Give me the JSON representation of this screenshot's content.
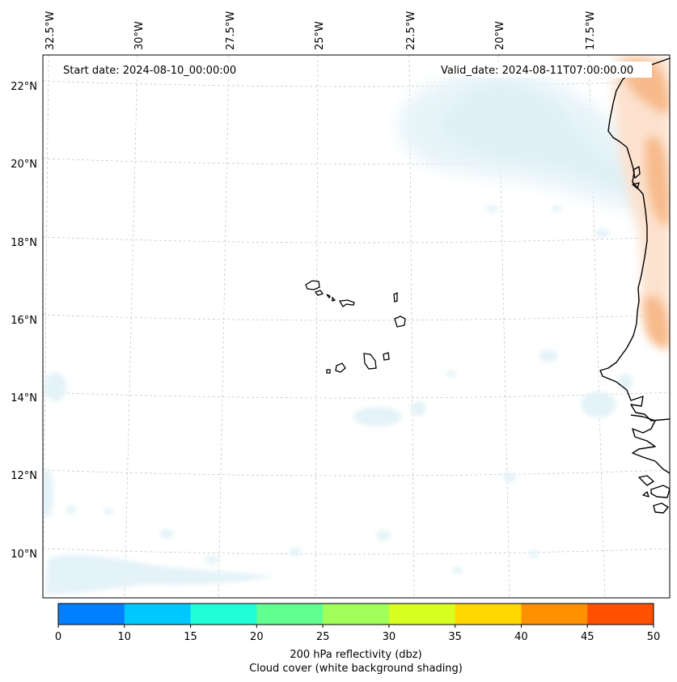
{
  "map": {
    "start_label": "Start date: 2024-08-10_00:00:00",
    "valid_label": "Valid_date: 2024-08-11T07:00:00.00",
    "lon_labels": [
      "32.5°W",
      "30°W",
      "27.5°W",
      "25°W",
      "22.5°W",
      "20°W",
      "17.5°W"
    ],
    "lat_labels": [
      "22°N",
      "20°N",
      "18°N",
      "16°N",
      "14°N",
      "12°N",
      "10°N"
    ]
  },
  "colorbar": {
    "ticks": [
      "0",
      "10",
      "15",
      "20",
      "25",
      "30",
      "35",
      "40",
      "45",
      "50"
    ],
    "colors": [
      "#0080ff",
      "#00c8ff",
      "#20ffd8",
      "#60ff90",
      "#a0ff58",
      "#d8ff20",
      "#ffd800",
      "#ff9000",
      "#ff5000"
    ],
    "label_line1": "200 hPa reflectivity (dbz)",
    "label_line2": "Cloud cover (white background shading)"
  },
  "colors": {
    "cloud_blue": "#a8d8e6",
    "cloud_light": "#e4f3f8",
    "reflectivity_orange": "#f7b98a",
    "reflectivity_light": "#fce2cf",
    "grid": "#bfbfbf"
  }
}
